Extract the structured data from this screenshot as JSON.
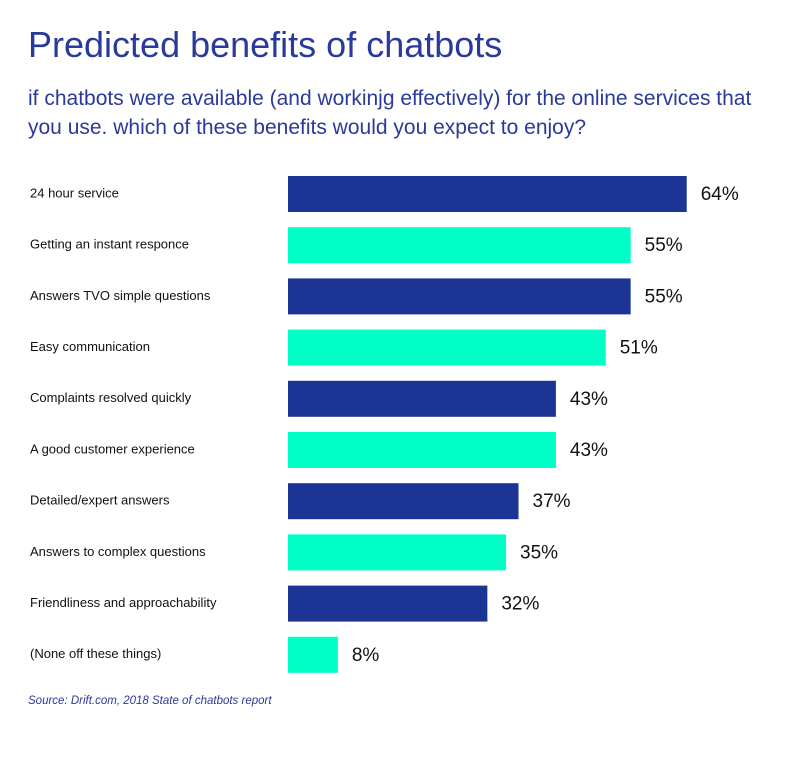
{
  "chart_data": {
    "type": "bar",
    "orientation": "horizontal",
    "title": "Predicted benefits of chatbots",
    "subtitle": "if chatbots were available (and workinjg effectively) for the online services that you use. which of these benefits would you expect to enjoy?",
    "categories": [
      "24 hour service",
      "Getting an instant responce",
      "Answers TVO simple questions",
      "Easy communication",
      "Complaints resolved quickly",
      "A good customer experience",
      "Detailed/expert answers",
      "Answers to complex questions",
      "Friendliness and approachability",
      "(None off these things)"
    ],
    "values": [
      64,
      55,
      55,
      51,
      43,
      43,
      37,
      35,
      32,
      8
    ],
    "value_labels": [
      "64%",
      "55%",
      "55%",
      "51%",
      "43%",
      "43%",
      "37%",
      "35%",
      "32%",
      "8%"
    ],
    "xlim": [
      0,
      100
    ],
    "unit": "%",
    "grid": false,
    "xlabel": "",
    "ylabel": "",
    "colors": [
      "#1c3594",
      "#00ffc6"
    ],
    "source": "Source: Drift.com, 2018 State of chatbots report"
  }
}
